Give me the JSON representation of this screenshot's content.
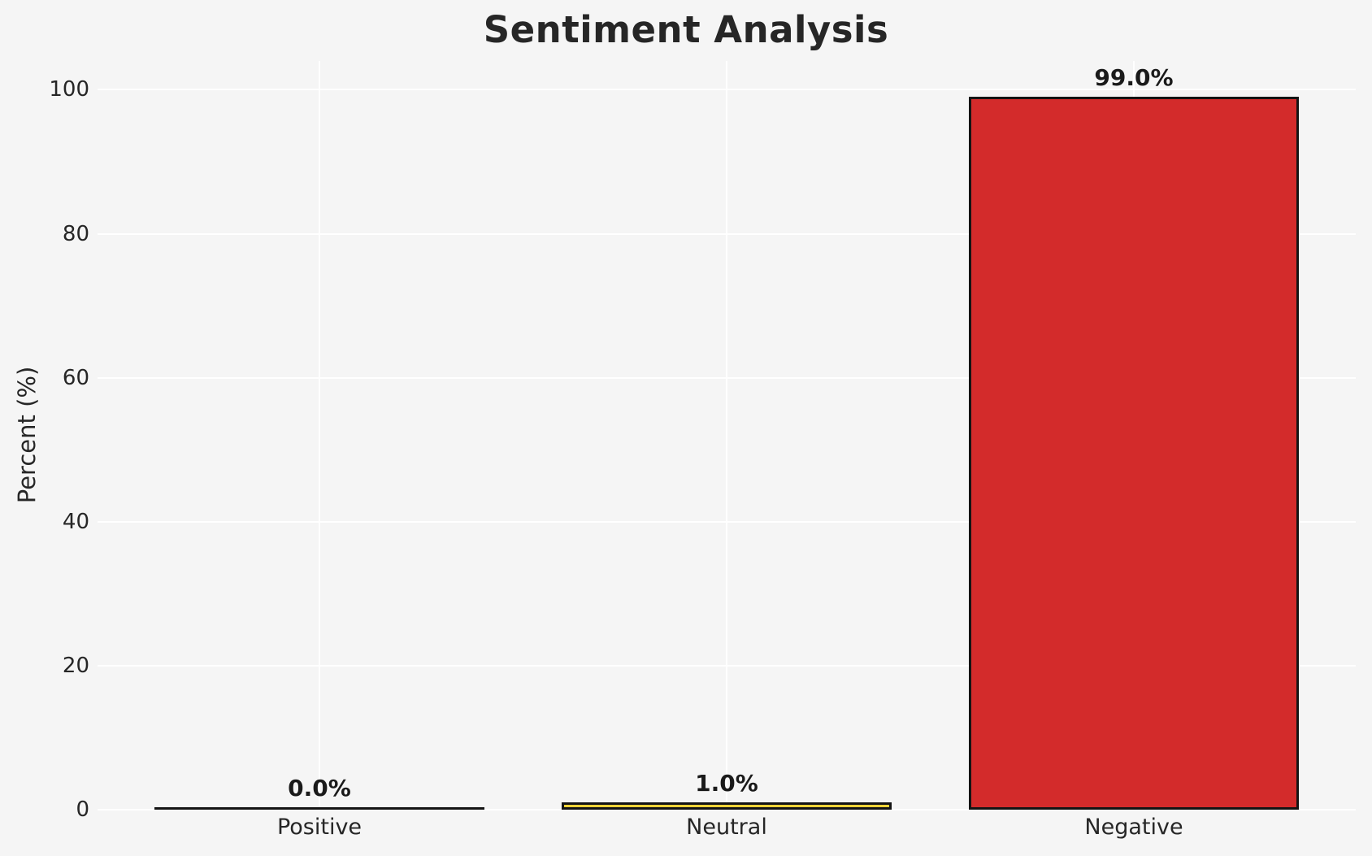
{
  "chart_data": {
    "type": "bar",
    "title": "Sentiment Analysis",
    "xlabel": "",
    "ylabel": "Percent (%)",
    "categories": [
      "Positive",
      "Neutral",
      "Negative"
    ],
    "values": [
      0.0,
      1.0,
      99.0
    ],
    "value_labels": [
      "0.0%",
      "1.0%",
      "99.0%"
    ],
    "bar_colors": [
      "#f5f5f5",
      "#FCD337",
      "#D32B2B"
    ],
    "bar_edge_color": "#141414",
    "yticks": [
      0,
      20,
      40,
      60,
      80,
      100
    ],
    "ytick_labels": [
      "0",
      "20",
      "40",
      "60",
      "80",
      "100"
    ],
    "ylim": [
      0,
      104
    ],
    "grid": true,
    "gridline_color": "#ffffff",
    "background_color": "#f5f5f5",
    "text_color": "#262626",
    "legend": "none"
  }
}
